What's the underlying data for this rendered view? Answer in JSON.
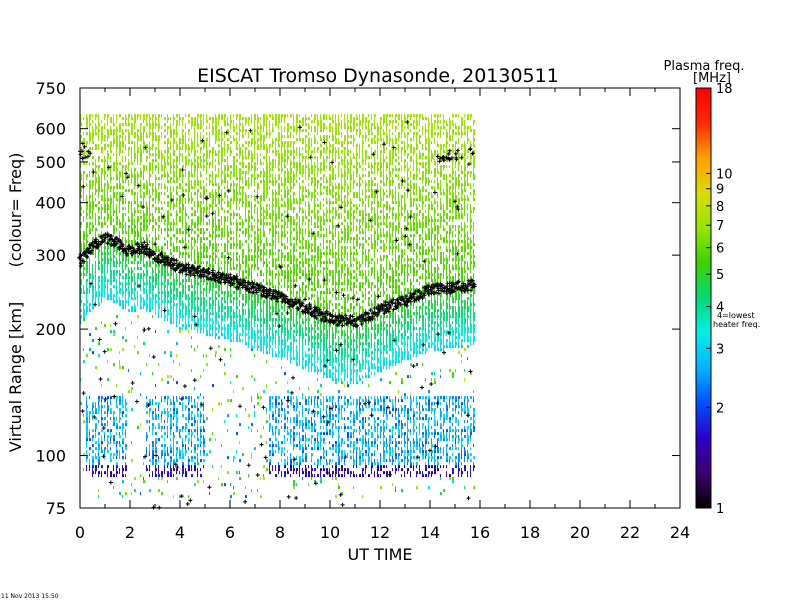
{
  "chart_data": {
    "type": "heatmap",
    "title": "EISCAT Tromso Dynasonde,  20130511",
    "xlabel": "UT TIME",
    "ylabel_main": "Virtual Range [km]",
    "ylabel_side": "(colour= Freq)",
    "x_range": [
      0,
      24
    ],
    "x_ticks": [
      0,
      2,
      4,
      6,
      8,
      10,
      12,
      14,
      16,
      18,
      20,
      22,
      24
    ],
    "y_scale": "log",
    "y_range": [
      75,
      750
    ],
    "y_ticks": [
      75,
      100,
      200,
      300,
      400,
      500,
      600,
      750
    ],
    "data_coverage_ut": [
      0,
      15.8
    ],
    "colorbar": {
      "title_line1": "Plasma freq.",
      "title_line2": "[MHz]",
      "scale": "log",
      "range": [
        1,
        18
      ],
      "ticks": [
        1,
        2,
        3,
        4,
        5,
        6,
        7,
        8,
        9,
        10,
        18
      ],
      "annotation_line1": "4=lowest",
      "annotation_line2": "heater freq.",
      "colors": [
        "#000000",
        "#3c0070",
        "#2a00c8",
        "#0050ff",
        "#00b4ff",
        "#00f0e6",
        "#00dc78",
        "#3cd200",
        "#96e600",
        "#dcdc00",
        "#ffa000",
        "#ff2800",
        "#ff0000"
      ]
    },
    "hmF2_trace": [
      {
        "x": 0.0,
        "y": 290
      },
      {
        "x": 0.5,
        "y": 315
      },
      {
        "x": 1.0,
        "y": 330
      },
      {
        "x": 1.5,
        "y": 320
      },
      {
        "x": 2.0,
        "y": 305
      },
      {
        "x": 2.5,
        "y": 315
      },
      {
        "x": 3.0,
        "y": 300
      },
      {
        "x": 4.0,
        "y": 280
      },
      {
        "x": 5.0,
        "y": 272
      },
      {
        "x": 6.0,
        "y": 262
      },
      {
        "x": 7.0,
        "y": 250
      },
      {
        "x": 8.0,
        "y": 238
      },
      {
        "x": 9.0,
        "y": 225
      },
      {
        "x": 10.0,
        "y": 212
      },
      {
        "x": 11.0,
        "y": 208
      },
      {
        "x": 11.5,
        "y": 215
      },
      {
        "x": 12.0,
        "y": 222
      },
      {
        "x": 13.0,
        "y": 235
      },
      {
        "x": 14.0,
        "y": 248
      },
      {
        "x": 14.5,
        "y": 250
      },
      {
        "x": 15.0,
        "y": 252
      },
      {
        "x": 15.8,
        "y": 255
      }
    ],
    "top_trace": [
      {
        "x": 0.0,
        "y": 540
      },
      {
        "x": 0.3,
        "y": 520
      },
      {
        "x": 14.5,
        "y": 505
      },
      {
        "x": 15.0,
        "y": 520
      },
      {
        "x": 15.8,
        "y": 525
      }
    ]
  },
  "timestamp": "11 Nov 2013 15:50"
}
